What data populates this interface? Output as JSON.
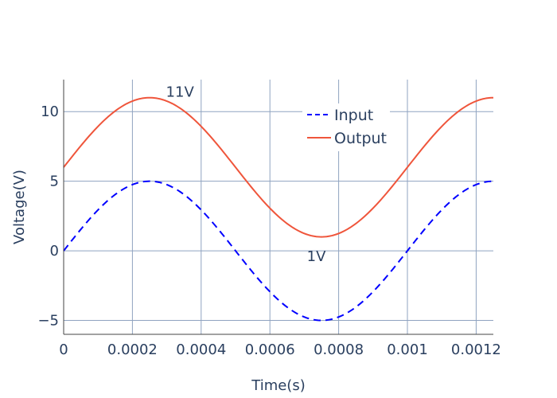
{
  "chart_data": {
    "type": "line",
    "title": "",
    "xlabel": "Time(s)",
    "ylabel": "Voltage(V)",
    "xlim": [
      0,
      0.00125
    ],
    "ylim": [
      -6,
      12.3
    ],
    "grid": true,
    "legend_position": "top-right",
    "x_ticks": [
      0,
      0.0002,
      0.0004,
      0.0006,
      0.0008,
      0.001,
      0.0012
    ],
    "x_tick_labels": [
      "0",
      "0.0002",
      "0.0004",
      "0.0006",
      "0.0008",
      "0.001",
      "0.0012"
    ],
    "y_ticks": [
      -5,
      0,
      5,
      10
    ],
    "y_tick_labels": [
      "−5",
      "0",
      "5",
      "10"
    ],
    "series": [
      {
        "name": "Input",
        "color": "#0000ff",
        "dash": "dashed",
        "function": "5*sin(2*pi*1000*t)"
      },
      {
        "name": "Output",
        "color": "#ef553b",
        "dash": "solid",
        "function": "6+5*sin(2*pi*1000*t)"
      }
    ],
    "annotations": [
      {
        "text": "11V",
        "x": 0.00033,
        "y": 11.4
      },
      {
        "text": "1V",
        "x": 0.00074,
        "y": -0.4
      }
    ],
    "colors": {
      "axis_text": "#2a3f5f",
      "grid": "#8fa3c0",
      "axis_line": "#444444"
    }
  }
}
